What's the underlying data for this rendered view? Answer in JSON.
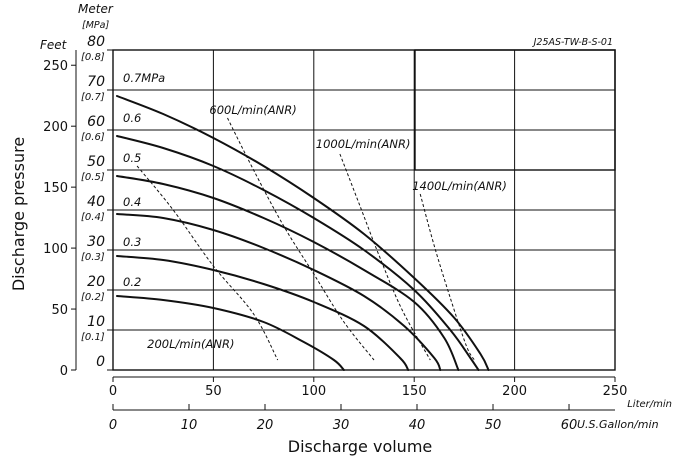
{
  "chart_data": {
    "type": "line",
    "drawing_id": "J25AS-TW-B-S-01",
    "xlabel": "Discharge volume",
    "ylabel": "Discharge pressure",
    "x_axis_liter": {
      "unit": "Liter/min",
      "range": [
        0,
        250
      ],
      "ticks": [
        0,
        50,
        100,
        150,
        200,
        250
      ]
    },
    "x_axis_gallon": {
      "unit": "U.S.Gallon/min",
      "range": [
        0,
        66.05
      ],
      "ticks": [
        0,
        10,
        20,
        30,
        40,
        50,
        60
      ]
    },
    "y_axis_meter": {
      "unit": "Meter",
      "sub_unit": "[MPa]",
      "range": [
        0,
        80
      ],
      "ticks": [
        0,
        10,
        20,
        30,
        40,
        50,
        60,
        70,
        80
      ],
      "mpa_labels": [
        "[0.1]",
        "[0.2]",
        "[0.3]",
        "[0.4]",
        "[0.5]",
        "[0.6]",
        "[0.7]",
        "[0.8]"
      ]
    },
    "y_axis_feet": {
      "unit": "Feet",
      "range": [
        0,
        262.5
      ],
      "ticks": [
        0,
        50,
        100,
        150,
        200,
        250
      ]
    },
    "grid": true,
    "series": [
      {
        "name": "0.7MPa",
        "label_at": [
          2,
          72
        ],
        "points": [
          [
            2,
            68.5
          ],
          [
            25,
            64
          ],
          [
            50,
            58
          ],
          [
            75,
            51
          ],
          [
            100,
            43
          ],
          [
            125,
            34
          ],
          [
            150,
            23
          ],
          [
            170,
            13
          ],
          [
            183,
            4
          ],
          [
            187,
            0
          ]
        ]
      },
      {
        "name": "0.6",
        "label_at": [
          2,
          62
        ],
        "points": [
          [
            2,
            58.5
          ],
          [
            25,
            55.5
          ],
          [
            50,
            51
          ],
          [
            75,
            45
          ],
          [
            100,
            38
          ],
          [
            125,
            30
          ],
          [
            150,
            20
          ],
          [
            168,
            10
          ],
          [
            178,
            3
          ],
          [
            182,
            0
          ]
        ]
      },
      {
        "name": "0.5",
        "label_at": [
          2,
          52
        ],
        "points": [
          [
            2,
            48.5
          ],
          [
            25,
            46.5
          ],
          [
            50,
            43
          ],
          [
            75,
            38
          ],
          [
            100,
            32
          ],
          [
            125,
            25
          ],
          [
            150,
            17
          ],
          [
            165,
            8
          ],
          [
            172,
            0
          ]
        ]
      },
      {
        "name": "0.4",
        "label_at": [
          2,
          41
        ],
        "points": [
          [
            2,
            39
          ],
          [
            25,
            38
          ],
          [
            50,
            35
          ],
          [
            75,
            30.5
          ],
          [
            100,
            25
          ],
          [
            125,
            18.5
          ],
          [
            145,
            11
          ],
          [
            160,
            3
          ],
          [
            163,
            0
          ]
        ]
      },
      {
        "name": "0.3",
        "label_at": [
          2,
          31
        ],
        "points": [
          [
            2,
            28.5
          ],
          [
            25,
            27.5
          ],
          [
            50,
            25
          ],
          [
            75,
            21.5
          ],
          [
            100,
            17
          ],
          [
            125,
            11
          ],
          [
            143,
            3
          ],
          [
            147,
            0
          ]
        ]
      },
      {
        "name": "0.2",
        "label_at": [
          2,
          21
        ],
        "points": [
          [
            2,
            18.5
          ],
          [
            25,
            17.5
          ],
          [
            50,
            15.5
          ],
          [
            75,
            12
          ],
          [
            95,
            7
          ],
          [
            110,
            2.5
          ],
          [
            115,
            0
          ]
        ]
      }
    ],
    "air_consumption_lines": [
      {
        "label": "200L/min(ANR)",
        "label_at": [
          17,
          5.5
        ],
        "points": [
          [
            12,
            51
          ],
          [
            30,
            40
          ],
          [
            50,
            26
          ],
          [
            70,
            14
          ],
          [
            82,
            2.5
          ]
        ]
      },
      {
        "label": "600L/min(ANR)",
        "label_at": [
          48,
          64
        ],
        "points": [
          [
            57,
            63
          ],
          [
            70,
            50
          ],
          [
            85,
            36
          ],
          [
            100,
            24
          ],
          [
            115,
            12
          ],
          [
            130,
            2.5
          ]
        ]
      },
      {
        "label": "1000L/min(ANR)",
        "label_at": [
          101,
          55.5
        ],
        "points": [
          [
            113,
            54
          ],
          [
            123,
            41
          ],
          [
            133,
            28
          ],
          [
            144,
            15
          ],
          [
            158,
            2.5
          ]
        ]
      },
      {
        "label": "1400L/min(ANR)",
        "label_at": [
          149,
          45
        ],
        "points": [
          [
            153,
            44
          ],
          [
            160,
            31
          ],
          [
            168,
            18
          ],
          [
            176,
            6
          ],
          [
            180,
            2.5
          ]
        ]
      }
    ]
  }
}
